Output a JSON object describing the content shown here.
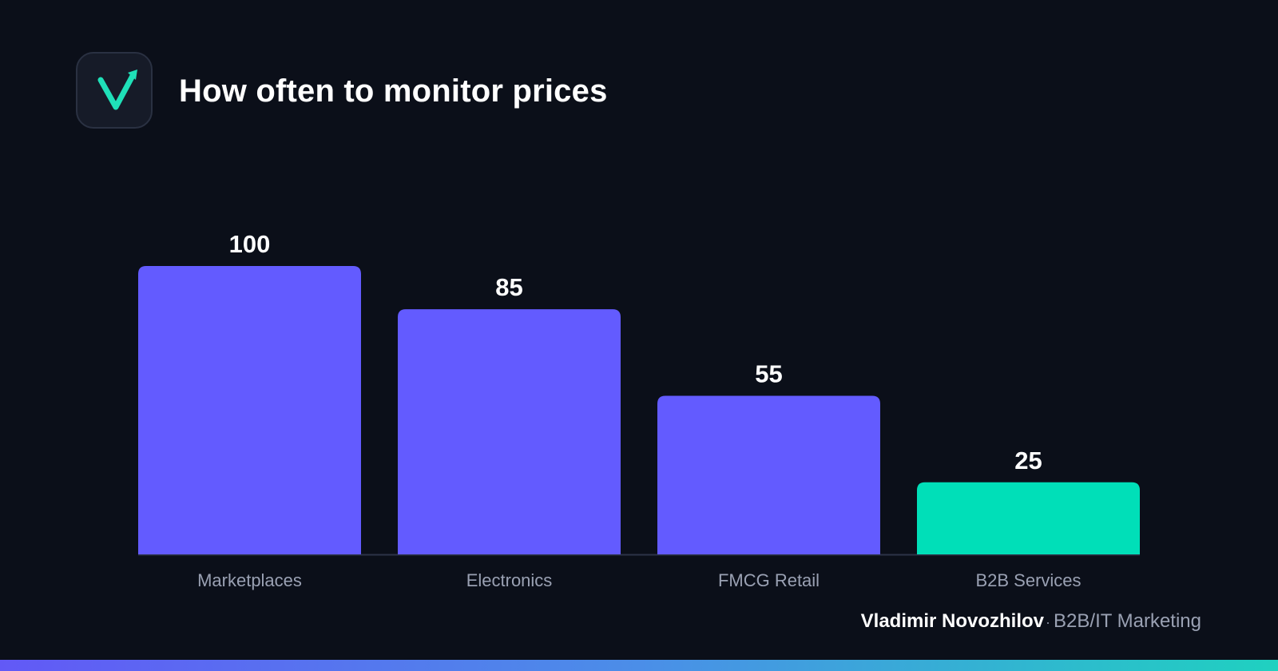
{
  "header": {
    "title": "How often to monitor prices",
    "logo_icon": "checkmark-arrow-icon"
  },
  "colors": {
    "background": "#0b0f19",
    "bar_primary": "#635bff",
    "bar_highlight": "#00dfb8",
    "axis_line": "#2c3347",
    "category_label": "#9aa1b3",
    "value_label": "#ffffff",
    "logo_accent": "#1fe0b8"
  },
  "chart_data": {
    "type": "bar",
    "title": "How often to monitor prices",
    "categories": [
      "Marketplaces",
      "Electronics",
      "FMCG Retail",
      "B2B Services"
    ],
    "values": [
      100,
      85,
      55,
      25
    ],
    "value_labels": [
      "100",
      "85",
      "55",
      "25"
    ],
    "highlight_index": 3,
    "xlabel": "",
    "ylabel": "",
    "ylim": [
      0,
      100
    ],
    "grid": false,
    "legend": "none"
  },
  "footer": {
    "author": "Vladimir Novozhilov",
    "separator": "·",
    "role": "B2B/IT Marketing"
  }
}
